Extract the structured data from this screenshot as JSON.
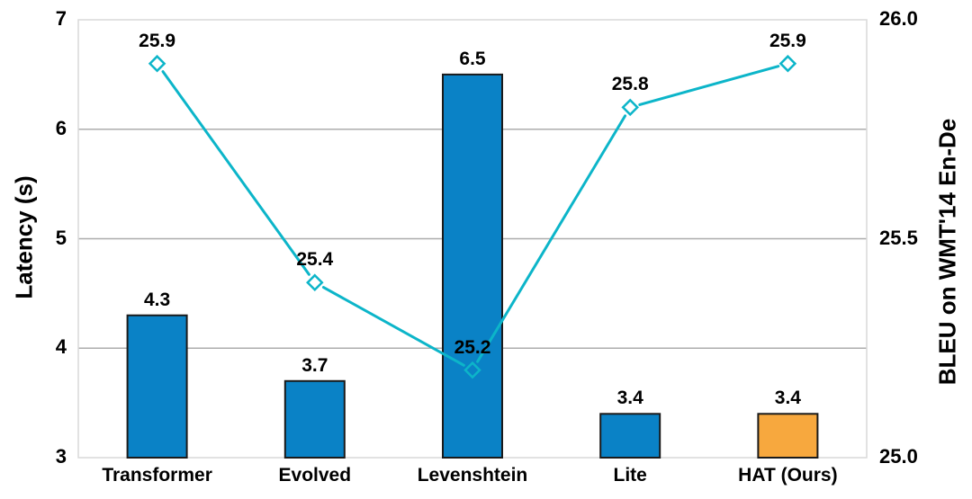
{
  "chart_data": {
    "type": "bar+line",
    "categories": [
      "Transformer",
      "Evolved",
      "Levenshtein",
      "Lite",
      "HAT (Ours)"
    ],
    "series": [
      {
        "name": "Latency",
        "type": "bar",
        "axis": "left",
        "values": [
          4.3,
          3.7,
          6.5,
          3.4,
          3.4
        ],
        "value_labels": [
          "4.3",
          "3.7",
          "6.5",
          "3.4",
          "3.4"
        ],
        "bar_colors": [
          "#0A82C6",
          "#0A82C6",
          "#0A82C6",
          "#0A82C6",
          "#F7A83E"
        ]
      },
      {
        "name": "BLEU",
        "type": "line",
        "axis": "right",
        "values": [
          25.9,
          25.4,
          25.2,
          25.8,
          25.9
        ],
        "value_labels": [
          "25.9",
          "25.4",
          "25.2",
          "25.8",
          "25.9"
        ],
        "line_color": "#0CB5C9",
        "marker": "open-diamond"
      }
    ],
    "left_axis": {
      "title": "Latency (s)",
      "min": 3,
      "max": 7,
      "ticks": [
        3,
        4,
        5,
        6,
        7
      ],
      "tick_labels": [
        "3",
        "4",
        "5",
        "6",
        "7"
      ]
    },
    "right_axis": {
      "title": "BLEU on WMT'14 En-De",
      "min": 25.0,
      "max": 26.0,
      "ticks": [
        25.0,
        25.5,
        26.0
      ],
      "tick_labels": [
        "25.0",
        "25.5",
        "26.0"
      ]
    },
    "gridlines": {
      "values": [
        4,
        5,
        6
      ],
      "color": "#ADADAD"
    },
    "legend": {
      "show": false
    },
    "colors": {
      "plot_border": "#D9D9D9",
      "bar_border": "#1A1A1A",
      "text": "#000000",
      "background": "#FFFFFF"
    }
  }
}
